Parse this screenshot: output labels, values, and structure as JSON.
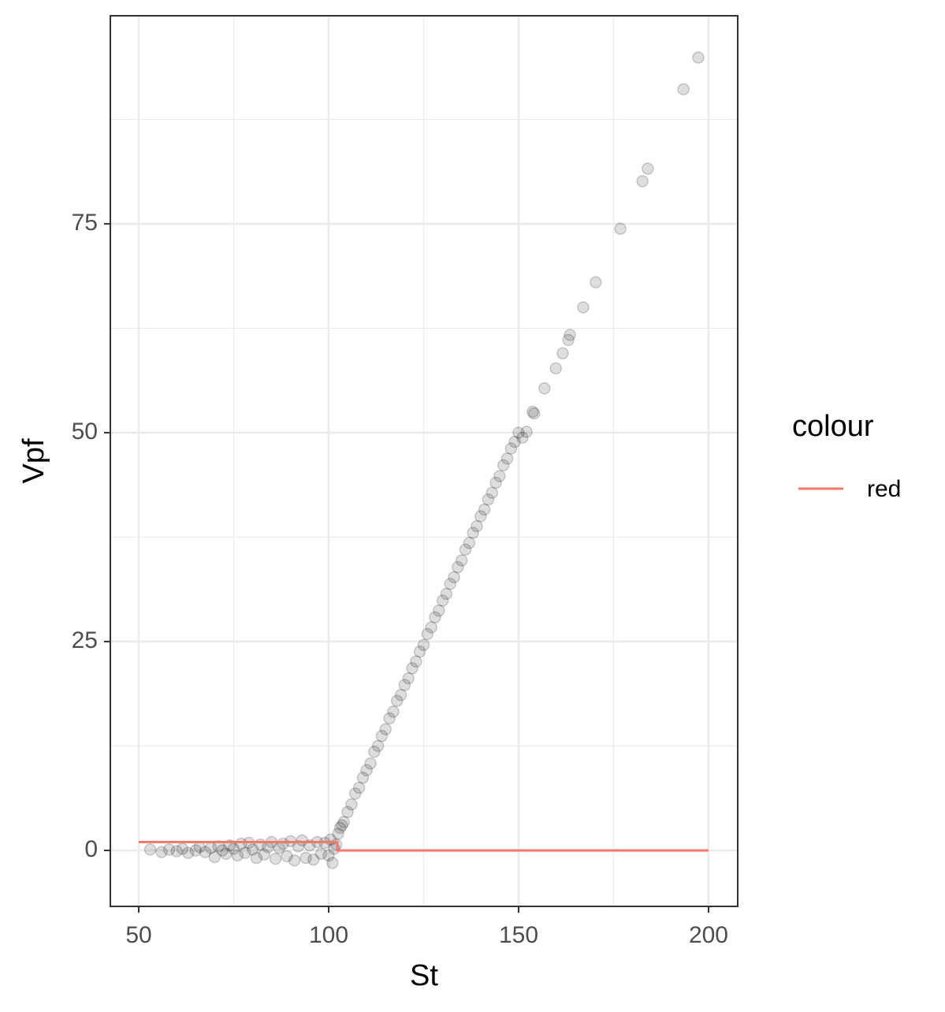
{
  "chart_data": {
    "type": "scatter",
    "x_label": "St",
    "y_label": "Vpf",
    "xlim": [
      42.53,
      207.68
    ],
    "ylim": [
      -6.7,
      99.9
    ],
    "xticks": [
      50,
      100,
      150,
      200
    ],
    "yticks": [
      0,
      25,
      50,
      75
    ],
    "x_minor_ticks": [
      75,
      125,
      175
    ],
    "y_minor_ticks": [
      12.5,
      37.5,
      62.5,
      87.5
    ],
    "grid": true,
    "points": {
      "color": "#000000",
      "opacity": 0.13,
      "x": [
        53,
        56,
        58,
        60,
        61.5,
        63,
        65,
        66,
        67.5,
        69,
        70,
        71,
        72,
        73,
        74,
        75,
        76,
        77,
        78,
        79,
        80,
        81,
        82,
        83,
        84,
        85,
        86,
        87,
        88,
        89,
        90,
        91,
        92,
        93,
        94,
        95,
        96,
        97,
        98,
        99,
        100,
        100.5,
        101,
        101.5,
        102,
        102.5,
        103,
        103.5,
        104,
        105,
        106,
        107,
        108,
        109,
        110,
        111,
        112,
        113,
        114,
        115,
        116,
        117,
        118,
        119,
        120,
        121,
        122,
        123,
        124,
        125,
        126,
        127,
        128,
        129,
        130,
        131,
        132,
        133,
        134,
        135,
        136,
        137,
        138,
        139,
        140,
        141,
        142,
        143,
        144,
        145,
        146,
        147,
        148,
        149,
        150,
        151.0,
        152.1,
        153.7,
        154.1,
        156.8,
        159.8,
        161.6,
        163.1,
        163.5,
        167.0,
        170.3,
        176.8,
        182.6,
        184.0,
        193.4,
        197.3
      ],
      "y": [
        0.1,
        -0.2,
        0.1,
        -0.1,
        0.2,
        -0.3,
        0.0,
        0.4,
        -0.2,
        0.3,
        -0.8,
        0.5,
        0.0,
        -0.4,
        0.6,
        0.2,
        -0.6,
        0.8,
        -0.3,
        0.9,
        0.1,
        -0.9,
        0.7,
        -0.5,
        0.4,
        1.0,
        -1.0,
        0.3,
        0.8,
        -0.7,
        1.1,
        -1.2,
        0.5,
        1.2,
        -0.9,
        0.6,
        -1.1,
        1.0,
        -0.4,
        0.9,
        -0.6,
        1.3,
        -1.5,
        0.2,
        0.7,
        2.0,
        2.7,
        3.0,
        3.4,
        4.6,
        5.5,
        6.8,
        7.5,
        8.7,
        9.6,
        10.4,
        11.8,
        12.5,
        13.7,
        14.5,
        15.8,
        16.6,
        17.9,
        18.6,
        19.8,
        20.6,
        21.8,
        22.6,
        23.8,
        24.6,
        25.9,
        26.7,
        27.9,
        28.7,
        29.9,
        30.7,
        31.9,
        32.7,
        33.9,
        34.7,
        36.0,
        36.8,
        38.0,
        38.8,
        40.0,
        40.8,
        42.0,
        42.8,
        44.0,
        44.8,
        46.1,
        46.9,
        48.1,
        48.9,
        50.0,
        49.4,
        50.1,
        52.5,
        52.3,
        55.3,
        57.7,
        59.5,
        61.1,
        61.7,
        65.0,
        68.0,
        74.4,
        80.1,
        81.6,
        91.1,
        94.9
      ]
    },
    "legend_title": "colour",
    "series": [
      {
        "name": "red",
        "color": "#F8766D",
        "x": [
          50,
          102.3,
          102.3,
          200
        ],
        "values": [
          1,
          1,
          0,
          0
        ]
      }
    ]
  }
}
